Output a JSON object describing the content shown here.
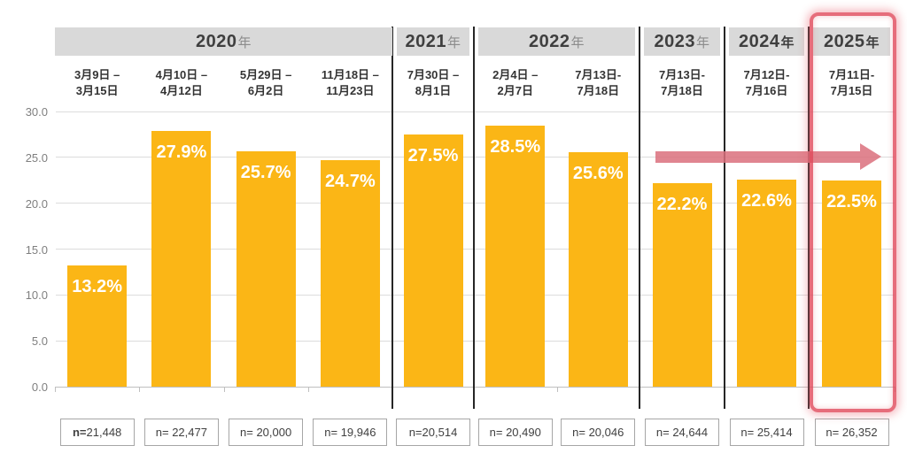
{
  "chart_data": {
    "type": "bar",
    "title": "",
    "value_unit": "%",
    "ylim": [
      0,
      30
    ],
    "grid": true,
    "legend": null,
    "bar_color": "#FBB616",
    "yticks": [
      {
        "value": 0,
        "label": "0.0"
      },
      {
        "value": 5,
        "label": "5.0"
      },
      {
        "value": 10,
        "label": "10.0"
      },
      {
        "value": 15,
        "label": "15.0"
      },
      {
        "value": 20,
        "label": "20.0"
      },
      {
        "value": 25,
        "label": "25.0"
      },
      {
        "value": 30,
        "label": "30.0"
      }
    ],
    "groups": [
      {
        "year": "2020",
        "year_suffix": "年",
        "suffix_emphasized": false,
        "highlighted": false,
        "bars": [
          {
            "period_line1": "3月9日 –",
            "period_line2": "3月15日",
            "value": 13.2,
            "value_label": "13.2%",
            "n_label": "n=21,448",
            "n_prefix_bold": true
          },
          {
            "period_line1": "4月10日 –",
            "period_line2": "4月12日",
            "value": 27.9,
            "value_label": "27.9%",
            "n_label": "n= 22,477",
            "n_prefix_bold": false
          },
          {
            "period_line1": "5月29日 –",
            "period_line2": "6月2日",
            "value": 25.7,
            "value_label": "25.7%",
            "n_label": "n= 20,000",
            "n_prefix_bold": false
          },
          {
            "period_line1": "11月18日 –",
            "period_line2": "11月23日",
            "value": 24.7,
            "value_label": "24.7%",
            "n_label": "n= 19,946",
            "n_prefix_bold": false
          }
        ]
      },
      {
        "year": "2021",
        "year_suffix": "年",
        "suffix_emphasized": false,
        "highlighted": false,
        "bars": [
          {
            "period_line1": "7月30日 –",
            "period_line2": "8月1日",
            "value": 27.5,
            "value_label": "27.5%",
            "n_label": "n=20,514",
            "n_prefix_bold": false
          }
        ]
      },
      {
        "year": "2022",
        "year_suffix": "年",
        "suffix_emphasized": false,
        "highlighted": false,
        "bars": [
          {
            "period_line1": "2月4日 –",
            "period_line2": "2月7日",
            "value": 28.5,
            "value_label": "28.5%",
            "n_label": "n= 20,490",
            "n_prefix_bold": false
          },
          {
            "period_line1": "7月13日-",
            "period_line2": "7月18日",
            "value": 25.6,
            "value_label": "25.6%",
            "n_label": "n= 20,046",
            "n_prefix_bold": false
          }
        ]
      },
      {
        "year": "2023",
        "year_suffix": "年",
        "suffix_emphasized": false,
        "highlighted": false,
        "bars": [
          {
            "period_line1": "7月13日-",
            "period_line2": "7月18日",
            "value": 22.2,
            "value_label": "22.2%",
            "n_label": "n= 24,644",
            "n_prefix_bold": false
          }
        ]
      },
      {
        "year": "2024",
        "year_suffix": "年",
        "suffix_emphasized": true,
        "highlighted": false,
        "bars": [
          {
            "period_line1": "7月12日-",
            "period_line2": "7月16日",
            "value": 22.6,
            "value_label": "22.6%",
            "n_label": "n= 25,414",
            "n_prefix_bold": false
          }
        ]
      },
      {
        "year": "2025",
        "year_suffix": "年",
        "suffix_emphasized": true,
        "highlighted": true,
        "bars": [
          {
            "period_line1": "7月11日-",
            "period_line2": "7月15日",
            "value": 22.5,
            "value_label": "22.5%",
            "n_label": "n= 26,352",
            "n_prefix_bold": false
          }
        ]
      }
    ],
    "annotations": {
      "trend_arrow": {
        "direction": "right",
        "color": "#DB707D",
        "spans_years": [
          "2023",
          "2024",
          "2025"
        ]
      },
      "highlight_box": {
        "year": "2025",
        "color": "#E0485A"
      }
    }
  }
}
